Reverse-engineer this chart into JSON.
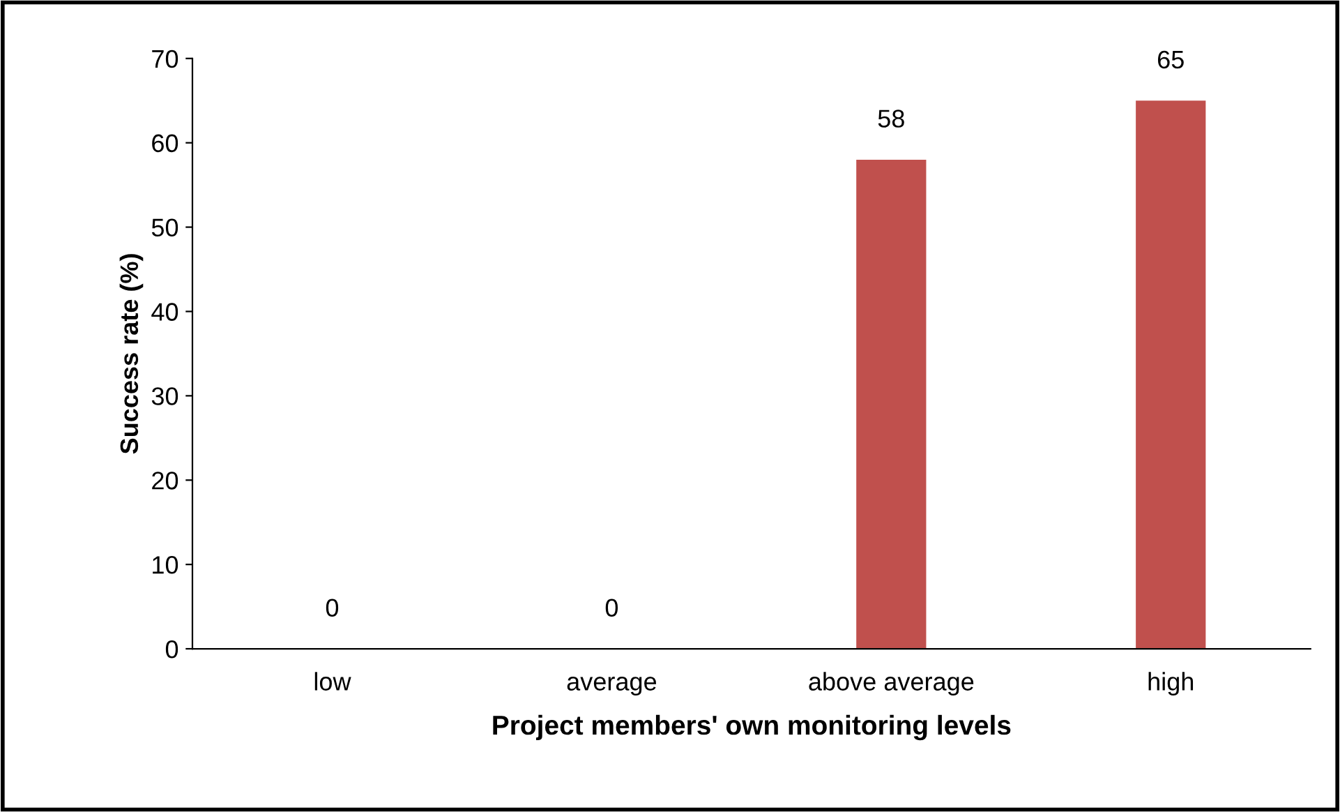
{
  "chart_data": {
    "type": "bar",
    "xlabel": "Project members' own monitoring levels",
    "ylabel": "Success rate (%)",
    "categories": [
      "low",
      "average",
      "above average",
      "high"
    ],
    "values": [
      0,
      0,
      58,
      65
    ],
    "color": "#c0504d",
    "ylim": [
      0,
      70
    ],
    "yticks": [
      0,
      10,
      20,
      30,
      40,
      50,
      60,
      70
    ],
    "grid": false,
    "data_labels": true
  }
}
